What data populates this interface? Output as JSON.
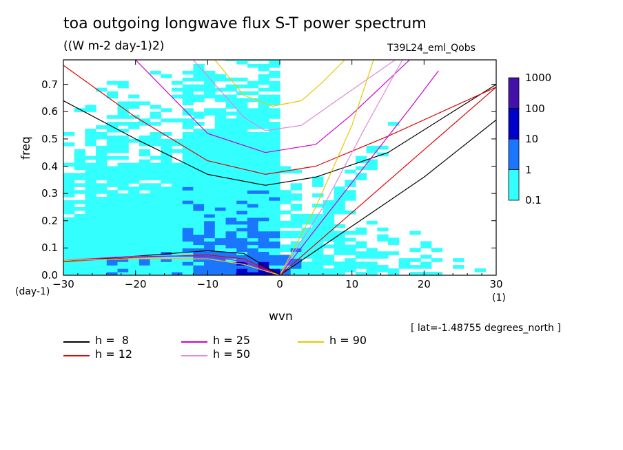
{
  "header": {
    "title": "toa outgoing longwave flux S-T power spectrum",
    "units": "((W m-2 day-1)2)",
    "dataset": "T39L24_eml_Qobs"
  },
  "axes": {
    "ylabel": "freq",
    "xlabel": "wvn",
    "yunit": "(day-1)",
    "xunit": "(1)"
  },
  "note": "[ lat=-1.48755 degrees_north ]",
  "chart_data": {
    "type": "heatmap",
    "title": "toa outgoing longwave flux S-T power spectrum",
    "subtitle": "((W m-2 day-1)2)",
    "xlabel": "wvn",
    "ylabel": "freq",
    "xlim": [
      -30,
      30
    ],
    "ylim": [
      0,
      0.79
    ],
    "x_ticks": [
      "-30",
      "-20",
      "-10",
      "0",
      "10",
      "20",
      "30"
    ],
    "y_ticks": [
      "0.0",
      "0.1",
      "0.2",
      "0.3",
      "0.4",
      "0.5",
      "0.6",
      "0.7"
    ],
    "colorbar": {
      "levels": [
        "0.1",
        "1",
        "10",
        "100",
        "1000"
      ],
      "colors": [
        "#33ffff",
        "#1a75ff",
        "#0000cc",
        "#4411aa"
      ]
    },
    "legend": [
      {
        "label": "h =  8",
        "color": "#000000"
      },
      {
        "label": "h = 12",
        "color": "#e00000"
      },
      {
        "label": "h = 25",
        "color": "#cc00cc"
      },
      {
        "label": "h = 50",
        "color": "#dd88dd"
      },
      {
        "label": "h = 90",
        "color": "#e8c800"
      }
    ],
    "series": [
      {
        "name": "h =  8",
        "color": "#000000",
        "n1": [
          [
            -30,
            0.64
          ],
          [
            -20,
            0.5
          ],
          [
            -10,
            0.37
          ],
          [
            -2,
            0.33
          ],
          [
            5,
            0.36
          ],
          [
            15,
            0.45
          ],
          [
            30,
            0.7
          ]
        ],
        "n0": [
          [
            -30,
            0.05
          ],
          [
            -20,
            0.07
          ],
          [
            -10,
            0.09
          ],
          [
            -5,
            0.08
          ],
          [
            0,
            0.0
          ]
        ],
        "kelvin": [
          [
            0,
            0.0
          ],
          [
            10,
            0.18
          ],
          [
            20,
            0.36
          ],
          [
            30,
            0.57
          ]
        ]
      },
      {
        "name": "h = 12",
        "color": "#e00000",
        "n1": [
          [
            -30,
            0.77
          ],
          [
            -20,
            0.58
          ],
          [
            -10,
            0.42
          ],
          [
            -2,
            0.37
          ],
          [
            5,
            0.4
          ],
          [
            15,
            0.51
          ],
          [
            30,
            0.69
          ]
        ],
        "n0": [
          [
            -30,
            0.05
          ],
          [
            -20,
            0.065
          ],
          [
            -10,
            0.075
          ],
          [
            -5,
            0.06
          ],
          [
            0,
            0.0
          ]
        ],
        "kelvin": [
          [
            0,
            0.0
          ],
          [
            10,
            0.23
          ],
          [
            20,
            0.46
          ],
          [
            30,
            0.69
          ]
        ]
      },
      {
        "name": "h = 25",
        "color": "#cc00cc",
        "n1": [
          [
            -20,
            0.79
          ],
          [
            -10,
            0.52
          ],
          [
            -2,
            0.45
          ],
          [
            5,
            0.48
          ],
          [
            10,
            0.59
          ],
          [
            18,
            0.79
          ]
        ],
        "n0": [
          [
            -30,
            0.055
          ],
          [
            -20,
            0.07
          ],
          [
            -10,
            0.07
          ],
          [
            -5,
            0.05
          ],
          [
            0,
            0.0
          ]
        ],
        "kelvin": [
          [
            0,
            0.0
          ],
          [
            10,
            0.34
          ],
          [
            18,
            0.61
          ],
          [
            22,
            0.75
          ]
        ]
      },
      {
        "name": "h = 50",
        "color": "#dd88dd",
        "n1": [
          [
            -12,
            0.79
          ],
          [
            -5,
            0.58
          ],
          [
            -2,
            0.53
          ],
          [
            3,
            0.55
          ],
          [
            10,
            0.68
          ],
          [
            16,
            0.79
          ]
        ],
        "n0": [
          [
            -30,
            0.055
          ],
          [
            -20,
            0.06
          ],
          [
            -10,
            0.06
          ],
          [
            -5,
            0.04
          ],
          [
            0,
            0.0
          ]
        ],
        "kelvin": [
          [
            0,
            0.0
          ],
          [
            6,
            0.25
          ],
          [
            12,
            0.55
          ],
          [
            17,
            0.79
          ]
        ]
      },
      {
        "name": "h = 90",
        "color": "#e8c800",
        "n1": [
          [
            -9,
            0.79
          ],
          [
            -5,
            0.66
          ],
          [
            -1,
            0.62
          ],
          [
            3,
            0.64
          ],
          [
            6,
            0.71
          ],
          [
            9,
            0.79
          ]
        ],
        "n0": [
          [
            -30,
            0.055
          ],
          [
            -20,
            0.06
          ],
          [
            -10,
            0.06
          ],
          [
            -5,
            0.04
          ],
          [
            0,
            0.0
          ]
        ],
        "kelvin": [
          [
            0,
            0.0
          ],
          [
            5,
            0.25
          ],
          [
            10,
            0.55
          ],
          [
            13,
            0.79
          ]
        ]
      }
    ],
    "grid": false
  }
}
